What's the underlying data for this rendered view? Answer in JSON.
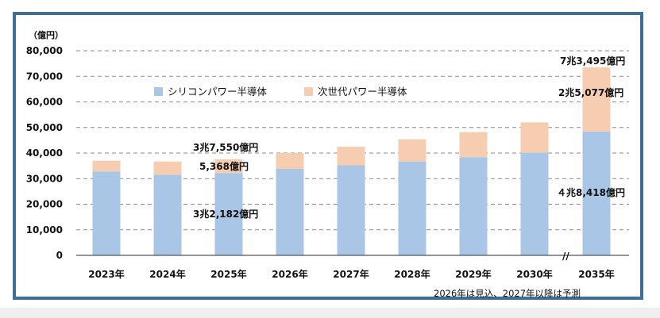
{
  "chart_data": {
    "type": "bar",
    "stacked": true,
    "y_unit_label": "（億円）",
    "ylim": [
      0,
      80000
    ],
    "y_ticks": [
      "0",
      "10,000",
      "20,000",
      "30,000",
      "40,000",
      "50,000",
      "60,000",
      "70,000",
      "80,000"
    ],
    "grid": "horizontal",
    "legend_position": "top-left",
    "categories": [
      "2023年",
      "2024年",
      "2025年",
      "2026年",
      "2027年",
      "2028年",
      "2029年",
      "2030年",
      "2035年"
    ],
    "series": [
      {
        "name": "シリコンパワー半導体",
        "color": "#a9c6e7",
        "values": [
          32800,
          31500,
          32182,
          33800,
          35200,
          36700,
          38400,
          40200,
          48418
        ]
      },
      {
        "name": "次世代パワー半導体",
        "color": "#f6cdb1",
        "values": [
          4200,
          5200,
          5368,
          6200,
          7300,
          8700,
          9800,
          11800,
          25077
        ]
      }
    ],
    "axis_break_mark": "//",
    "annotations": {
      "bar_2025_total": "3兆7,550億円",
      "bar_2025_next_gen": "5,368億円",
      "bar_2025_silicon": "3兆2,182億円",
      "bar_2035_total": "7兆3,495億円",
      "bar_2035_next_gen": "2兆5,077億円",
      "bar_2035_silicon": "４兆8,418億円"
    },
    "footnote": "2026年は見込、2027年以降は予測"
  }
}
